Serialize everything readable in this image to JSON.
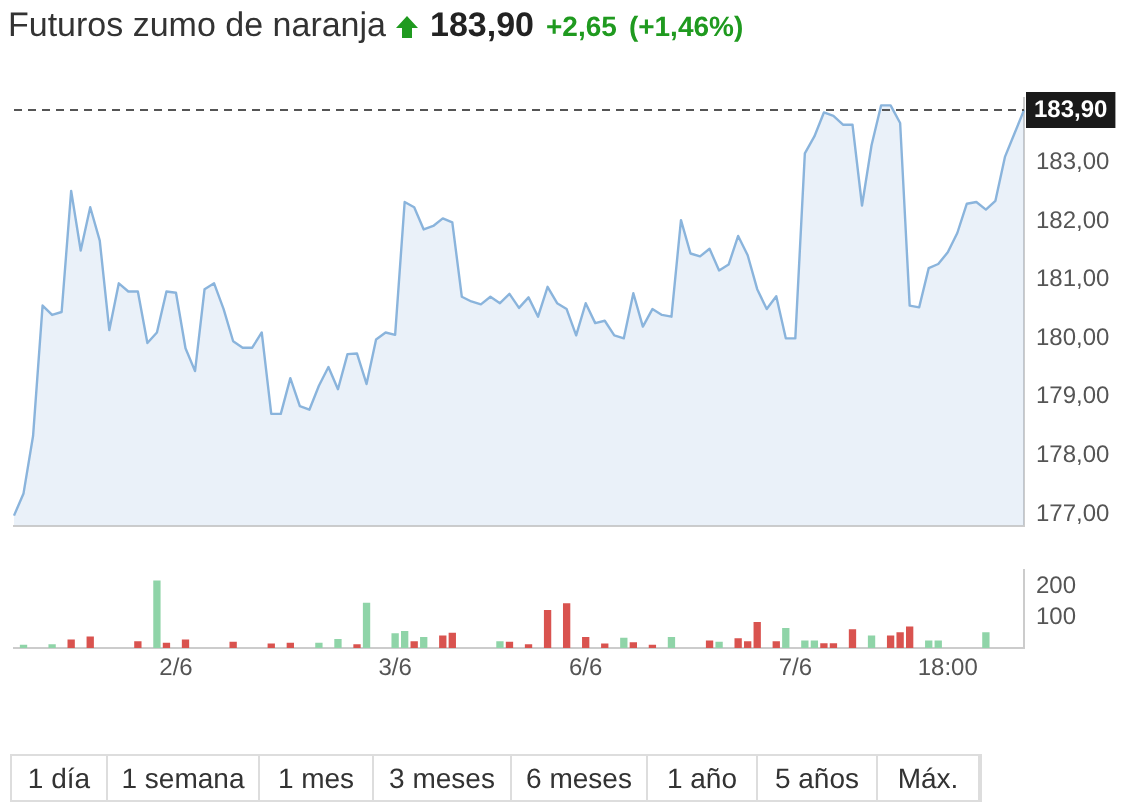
{
  "chart_data": [
    {
      "type": "area",
      "title": "Futuros zumo de naranja",
      "annotations": [
        "183,90",
        "+2,65",
        "(+1,46%)",
        "1 día",
        "1 semana",
        "1 mes",
        "3 meses",
        "6 meses",
        "1 año",
        "5 años",
        "Máx."
      ],
      "categories": [
        null,
        null,
        null,
        null,
        null,
        null,
        null,
        null,
        null,
        null,
        null,
        null,
        null,
        null,
        null,
        null,
        null,
        null,
        null,
        null,
        null,
        null,
        null,
        null,
        null,
        null,
        null,
        null,
        null,
        null,
        null,
        null,
        null,
        null,
        null,
        null,
        null,
        null,
        null,
        null,
        null,
        null,
        null,
        null,
        null,
        null,
        null,
        null,
        null,
        null,
        null,
        null,
        null,
        null,
        null,
        null,
        null,
        null,
        null,
        null,
        null,
        null,
        null,
        null,
        null,
        null,
        null,
        null,
        null,
        null,
        null,
        null,
        null,
        null,
        null,
        null,
        null,
        null,
        null,
        null,
        null,
        null,
        null,
        null,
        null,
        null,
        null,
        null,
        null,
        null,
        null,
        null,
        null,
        null,
        null,
        null,
        null,
        null,
        null,
        null,
        null,
        null,
        null,
        null,
        null,
        null,
        null
      ],
      "series": [
        {
          "color": "#8ab4dc",
          "values": [
            176.97,
            177.35,
            178.33,
            180.56,
            180.4,
            180.45,
            182.52,
            181.5,
            182.24,
            181.67,
            180.14,
            180.94,
            180.8,
            180.8,
            179.92,
            180.1,
            180.8,
            180.78,
            179.83,
            179.44,
            180.84,
            180.94,
            180.5,
            179.95,
            179.84,
            179.84,
            180.1,
            178.71,
            178.71,
            179.32,
            178.84,
            178.78,
            179.19,
            179.51,
            179.13,
            179.73,
            179.74,
            179.22,
            179.98,
            180.1,
            180.06,
            182.33,
            182.24,
            181.86,
            181.92,
            182.05,
            181.98,
            180.71,
            180.63,
            180.58,
            180.71,
            180.6,
            180.76,
            180.52,
            180.7,
            180.37,
            180.88,
            180.6,
            180.5,
            180.05,
            180.6,
            180.26,
            180.3,
            180.05,
            180.0,
            180.77,
            180.2,
            180.5,
            180.4,
            180.37,
            182.02,
            181.45,
            181.4,
            181.53,
            181.16,
            181.26,
            181.75,
            181.42,
            180.84,
            180.5,
            180.72,
            180.0,
            180.0,
            183.16,
            183.45,
            183.86,
            183.8,
            183.65,
            183.65,
            182.27,
            183.3,
            183.98,
            183.98,
            183.68,
            180.56,
            180.53,
            181.2,
            181.27,
            181.47,
            181.8,
            182.3,
            182.33,
            182.2,
            182.35,
            183.1,
            183.5,
            183.9
          ]
        }
      ],
      "ylim": [
        176.8,
        184.1
      ],
      "yticks": [
        {
          "value": 177,
          "label": "177,00"
        },
        {
          "value": 178,
          "label": "178,00"
        },
        {
          "value": 179,
          "label": "179,00"
        },
        {
          "value": 180,
          "label": "180,00"
        },
        {
          "value": 181,
          "label": "181,00"
        },
        {
          "value": 182,
          "label": "182,00"
        },
        {
          "value": 183,
          "label": "183,00"
        }
      ],
      "ref_lines": [
        {
          "axis": "y",
          "value": 183.9,
          "label": "183,90",
          "color": "#555555",
          "line_style": "dashed"
        }
      ],
      "tick_labels": "y",
      "grid": false,
      "legend": false,
      "marker": "none"
    },
    {
      "type": "bar",
      "categories": [
        null,
        null,
        null,
        null,
        null,
        null,
        null,
        null,
        null,
        null,
        null,
        null,
        null,
        null,
        null,
        null,
        null,
        "2/6",
        null,
        null,
        null,
        null,
        null,
        null,
        null,
        null,
        null,
        null,
        null,
        null,
        null,
        null,
        null,
        null,
        null,
        null,
        null,
        null,
        null,
        null,
        "3/6",
        null,
        null,
        null,
        null,
        null,
        null,
        null,
        null,
        null,
        null,
        null,
        null,
        null,
        null,
        null,
        null,
        null,
        null,
        null,
        "6/6",
        null,
        null,
        null,
        null,
        null,
        null,
        null,
        null,
        null,
        null,
        null,
        null,
        null,
        null,
        null,
        null,
        null,
        null,
        null,
        null,
        null,
        "7/6",
        null,
        null,
        null,
        null,
        null,
        null,
        null,
        null,
        null,
        null,
        null,
        null,
        null,
        null,
        null,
        "18:00",
        null,
        null,
        null,
        null,
        null,
        null,
        null,
        null
      ],
      "values": [
        null,
        8,
        null,
        null,
        10,
        null,
        25,
        null,
        35,
        null,
        null,
        null,
        null,
        20,
        null,
        215,
        15,
        null,
        25,
        null,
        null,
        null,
        null,
        18,
        null,
        null,
        null,
        12,
        null,
        15,
        null,
        null,
        15,
        null,
        27,
        null,
        10,
        144,
        null,
        null,
        45,
        53,
        20,
        33,
        null,
        38,
        47,
        null,
        null,
        null,
        null,
        20,
        18,
        null,
        10,
        null,
        120,
        null,
        142,
        null,
        33,
        null,
        12,
        null,
        31,
        16,
        null,
        8,
        null,
        33,
        null,
        null,
        null,
        22,
        18,
        null,
        29,
        20,
        82,
        null,
        20,
        62,
        null,
        22,
        22,
        13,
        13,
        null,
        58,
        null,
        38,
        null,
        38,
        49,
        67,
        null,
        22,
        22,
        null,
        null,
        null,
        null,
        49,
        null,
        null,
        null,
        null
      ],
      "colors": [
        "#8fd4a8",
        "#8fd4a8",
        "#8fd4a8",
        "#8fd4a8",
        "#8fd4a8",
        "#8fd4a8",
        "#d9534f",
        "#8fd4a8",
        "#d9534f",
        "#8fd4a8",
        "#8fd4a8",
        "#8fd4a8",
        "#8fd4a8",
        "#d9534f",
        "#8fd4a8",
        "#8fd4a8",
        "#d9534f",
        "#8fd4a8",
        "#d9534f",
        "#8fd4a8",
        "#8fd4a8",
        "#8fd4a8",
        "#8fd4a8",
        "#d9534f",
        "#8fd4a8",
        "#8fd4a8",
        "#8fd4a8",
        "#d9534f",
        "#8fd4a8",
        "#d9534f",
        "#8fd4a8",
        "#8fd4a8",
        "#8fd4a8",
        "#8fd4a8",
        "#8fd4a8",
        "#8fd4a8",
        "#d9534f",
        "#8fd4a8",
        "#8fd4a8",
        "#8fd4a8",
        "#8fd4a8",
        "#8fd4a8",
        "#d9534f",
        "#8fd4a8",
        "#8fd4a8",
        "#d9534f",
        "#d9534f",
        "#8fd4a8",
        "#8fd4a8",
        "#8fd4a8",
        "#8fd4a8",
        "#8fd4a8",
        "#d9534f",
        "#8fd4a8",
        "#d9534f",
        "#8fd4a8",
        "#d9534f",
        "#8fd4a8",
        "#d9534f",
        "#8fd4a8",
        "#d9534f",
        "#8fd4a8",
        "#d9534f",
        "#8fd4a8",
        "#8fd4a8",
        "#d9534f",
        "#8fd4a8",
        "#d9534f",
        "#8fd4a8",
        "#8fd4a8",
        "#8fd4a8",
        "#8fd4a8",
        "#8fd4a8",
        "#d9534f",
        "#8fd4a8",
        "#8fd4a8",
        "#d9534f",
        "#d9534f",
        "#d9534f",
        "#8fd4a8",
        "#d9534f",
        "#8fd4a8",
        "#8fd4a8",
        "#8fd4a8",
        "#8fd4a8",
        "#d9534f",
        "#d9534f",
        "#8fd4a8",
        "#d9534f",
        "#8fd4a8",
        "#8fd4a8",
        "#8fd4a8",
        "#d9534f",
        "#d9534f",
        "#d9534f",
        "#8fd4a8",
        "#8fd4a8",
        "#8fd4a8",
        "#8fd4a8",
        "#8fd4a8",
        "#8fd4a8",
        "#8fd4a8",
        "#8fd4a8",
        "#8fd4a8",
        "#8fd4a8",
        "#8fd4a8",
        "#8fd4a8"
      ],
      "ylim": [
        0,
        250
      ],
      "yticks": [
        100,
        200
      ],
      "grid": false,
      "legend": false
    }
  ]
}
